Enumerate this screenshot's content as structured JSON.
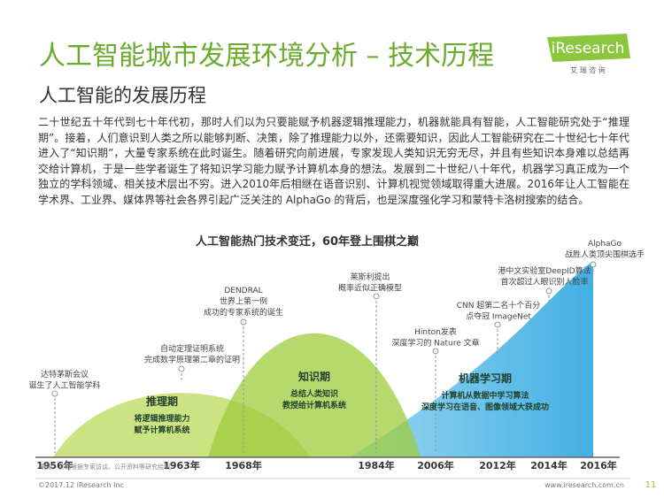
{
  "header": {
    "title": "人工智能城市发展环境分析 – 技术历程",
    "logo": "iResearch",
    "logo_sub": "艾 瑞 咨 询",
    "subtitle": "人工智能的发展历程"
  },
  "body": {
    "paragraph": "二十世纪五十年代到七十年代初，那时人们以为只要能赋予机器逻辑推理能力，机器就能具有智能，人工智能研究处于“推理期”。接着，人们意识到人类之所以能够判断、决策，除了推理能力以外，还需要知识，因此人工智能研究在二十世纪七十年代进入了“知识期”，大量专家系统在此时诞生。随着研究向前进展，专家发现人类知识无穷无尽，并且有些知识本身难以总结再交给计算机，于是一些学者诞生了将知识学习能力赋予计算机本身的想法。发展到二十世纪八十年代，机器学习真正成为一个独立的学科领域、相关技术层出不穷。进入2010年后相继在语音识别、计算机视觉领域取得重大进展。2016年让人工智能在学术界、工业界、媒体界等社会各界引起广泛关注的 AlphaGo 的背后，也是深度强化学习和蒙特卡洛树搜索的结合。"
  },
  "figure": {
    "title": "人工智能热门技术变迁，60年登上围棋之巅",
    "periods": [
      {
        "name": "推理期",
        "lines": [
          "将逻辑推理能力",
          "赋予计算机系统"
        ]
      },
      {
        "name": "知识期",
        "lines": [
          "总结人类知识",
          "教授给计算机系统"
        ]
      },
      {
        "name": "机器学习期",
        "lines": [
          "计算机从数据中学习算法",
          "深度学习在语音、图像领域大获成功"
        ]
      }
    ],
    "events": [
      {
        "lines": [
          "达特茅斯会议",
          "诞生了人工智能学科"
        ]
      },
      {
        "lines": [
          "自动定理证明系统",
          "完成数学原理第二章的证明"
        ]
      },
      {
        "lines": [
          "DENDRAL",
          "世界上第一例",
          "成功的专家系统的诞生"
        ]
      },
      {
        "lines": [
          "莱斯利提出",
          "概率近似正确模型"
        ]
      },
      {
        "lines": [
          "Hinton发表",
          "深度学习的 Nature 文章"
        ]
      },
      {
        "lines": [
          "CNN 超第二名十个百分",
          "点夺冠 ImageNet"
        ]
      },
      {
        "lines": [
          "港中文实验室DeepID算法",
          "首次超过人眼识别人脸率"
        ]
      },
      {
        "lines": [
          "AlphaGo",
          "战胜人类顶尖围棋选手"
        ]
      }
    ],
    "years": [
      "1956年",
      "1963年",
      "1968年",
      "1984年",
      "2006年",
      "2012年",
      "2014年",
      "2016年"
    ],
    "source": "来源：艾瑞根据专家访谈、公开资料等研究绘制。"
  },
  "footer": {
    "copyright": "©2017.12 iResearch Inc",
    "url": "www.iresearch.com.cn",
    "page": "11"
  }
}
